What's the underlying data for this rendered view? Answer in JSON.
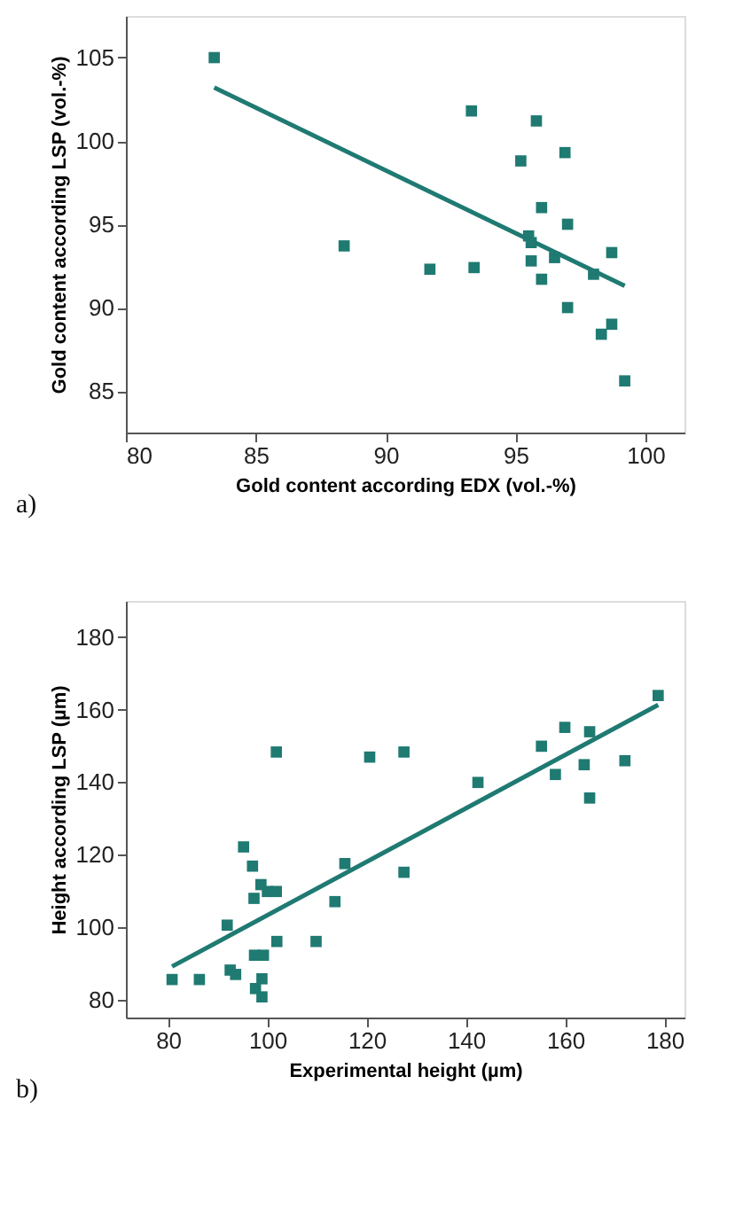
{
  "chart_data": [
    {
      "type": "scatter",
      "xlabel": "Gold content according EDX (vol.-%)",
      "ylabel": "Gold content according LSP (vol.-%)",
      "annotations": [
        "a)"
      ],
      "xlim": [
        80,
        101.5
      ],
      "ylim": [
        82.5,
        107.5
      ],
      "xticks": [
        80,
        85,
        90,
        95,
        100
      ],
      "yticks": [
        85,
        90,
        95,
        100,
        105
      ],
      "grid": false,
      "marker": "square",
      "series": [
        {
          "color": "#1f7a72",
          "x": [
            83.4,
            88.4,
            91.7,
            93.3,
            93.4,
            95.2,
            95.5,
            95.6,
            95.6,
            95.8,
            96.0,
            96.0,
            96.5,
            96.9,
            97.0,
            97.0,
            98.0,
            98.3,
            98.7,
            98.7,
            99.2
          ],
          "values": [
            105,
            93.7,
            92.3,
            101.8,
            92.4,
            98.8,
            94.3,
            93.9,
            92.8,
            101.2,
            91.7,
            96.0,
            93.0,
            99.3,
            95.0,
            90.0,
            92.0,
            88.4,
            93.3,
            89.0,
            85.6
          ]
        },
        {
          "type": "line",
          "color": "#1f7a72",
          "marker": "none",
          "line_style": "solid",
          "x": [
            83.4,
            99.2
          ],
          "values": [
            103.2,
            91.3
          ]
        }
      ]
    },
    {
      "type": "scatter",
      "xlabel": "Experimental height (µm)",
      "ylabel": "Height according LSP (µm)",
      "annotations": [
        "b)"
      ],
      "xlim": [
        71.5,
        184
      ],
      "ylim": [
        75,
        190
      ],
      "xticks": [
        80,
        100,
        120,
        140,
        160,
        180
      ],
      "yticks": [
        80,
        100,
        120,
        140,
        160,
        180
      ],
      "grid": false,
      "marker": "square",
      "series": [
        {
          "color": "#1f7a72",
          "x": [
            80.8,
            86.3,
            91.9,
            92.5,
            93.6,
            95.2,
            97.0,
            98.7,
            97.3,
            100.0,
            101.8,
            97.4,
            99.2,
            98.9,
            97.6,
            98.9,
            101.8,
            101.9,
            109.8,
            113.6,
            115.6,
            120.6,
            127.5,
            127.5,
            142.4,
            155.2,
            159.9,
            158.0,
            163.8,
            164.9,
            164.9,
            172.0,
            178.7
          ],
          "values": [
            85.5,
            85.5,
            100.5,
            88.1,
            86.9,
            122.1,
            116.8,
            111.7,
            107.9,
            109.8,
            109.8,
            92.2,
            92.2,
            85.7,
            83.0,
            80.7,
            148.3,
            96.0,
            96.0,
            107.0,
            117.5,
            146.9,
            148.3,
            115.1,
            139.9,
            149.9,
            155.1,
            142.1,
            144.8,
            153.9,
            135.6,
            145.9,
            163.9
          ]
        },
        {
          "type": "line",
          "color": "#1f7a72",
          "marker": "none",
          "line_style": "solid",
          "x": [
            80.8,
            178.7
          ],
          "values": [
            89.1,
            161.3
          ]
        }
      ]
    }
  ]
}
